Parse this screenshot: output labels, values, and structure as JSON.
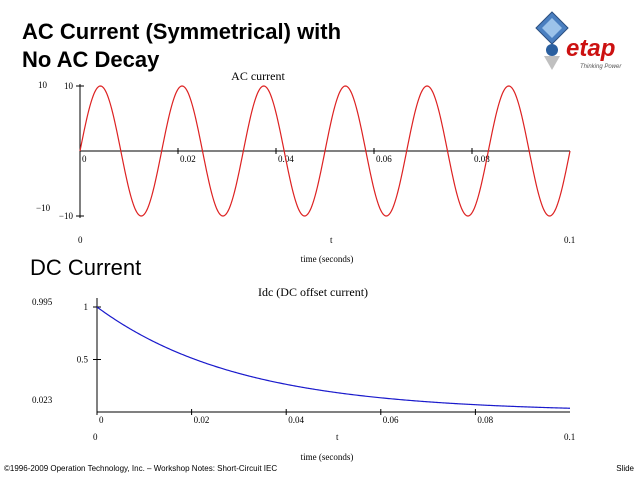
{
  "slide": {
    "title_line1": "AC Current (Symmetrical) with",
    "title_line2": "No AC Decay",
    "section_title": "DC Current",
    "footer": "©1996-2009 Operation Technology, Inc. – Workshop Notes: Short-Circuit IEC",
    "slide_label": "Slide",
    "logo_text": "etap",
    "logo_tagline": "Thinking Power"
  },
  "colors": {
    "ac_line": "#dd2222",
    "dc_line": "#1a1acc",
    "axis": "#000000"
  },
  "chart_data": [
    {
      "type": "line",
      "title": "AC current",
      "xlabel": "time (seconds)",
      "x_var": "t",
      "xlim": [
        0,
        0.1
      ],
      "ylim": [
        -10,
        10
      ],
      "x_range_labels": [
        "0",
        "0.1"
      ],
      "y_range_labels": [
        "10",
        "−10"
      ],
      "xticks": [
        "0",
        "0.02",
        "0.04",
        "0.06",
        "0.08"
      ],
      "yticks": [
        "10",
        "−10"
      ],
      "series": [
        {
          "function": "10*sin(2*pi*60*t)",
          "amplitude": 10,
          "frequency_hz": 60,
          "phase": 0
        }
      ]
    },
    {
      "type": "line",
      "title": "Idc (DC offset current)",
      "xlabel": "time (seconds)",
      "x_var": "t",
      "xlim": [
        0,
        0.1
      ],
      "ylim": [
        0.023,
        0.995
      ],
      "x_range_labels": [
        "0",
        "0.1"
      ],
      "y_range_labels": [
        "0.995",
        "0.023"
      ],
      "xticks": [
        "0",
        "0.02",
        "0.04",
        "0.06",
        "0.08"
      ],
      "yticks": [
        "1",
        "0.5"
      ],
      "series": [
        {
          "function": "exp(-t/0.03)",
          "time_constant_s": 0.03,
          "start": 1.0
        }
      ]
    }
  ]
}
